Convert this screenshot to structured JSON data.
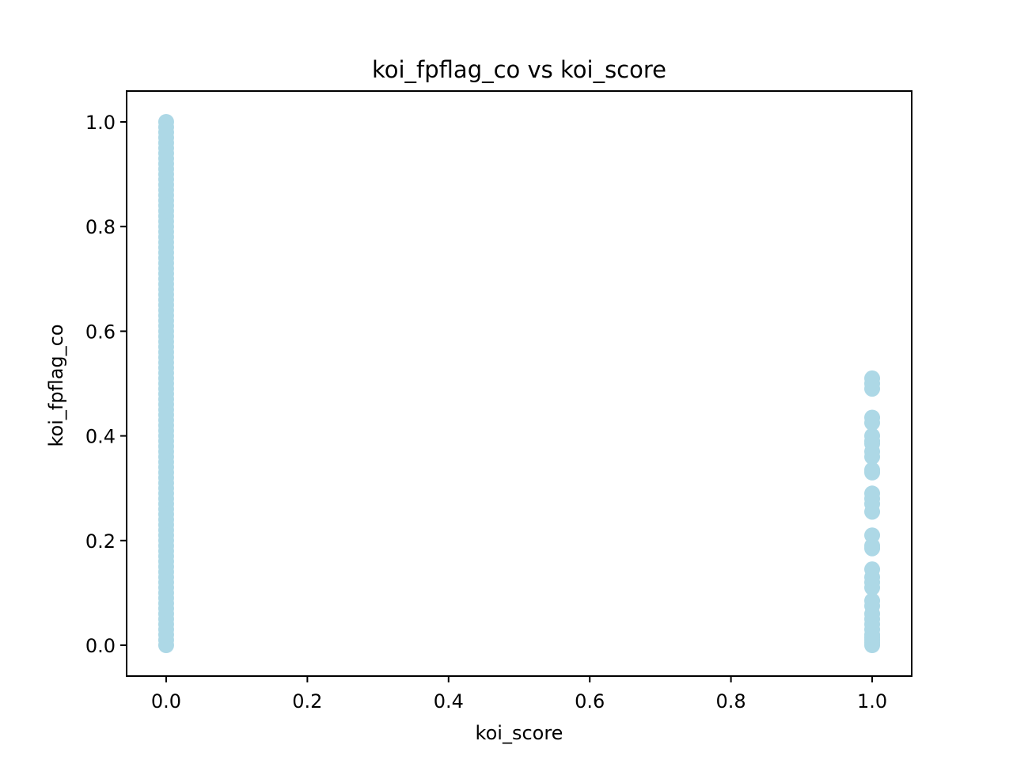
{
  "chart_data": {
    "type": "scatter",
    "title": "koi_fpflag_co vs koi_score",
    "xlabel": "koi_score",
    "ylabel": "koi_fpflag_co",
    "xlim": [
      -0.056,
      1.056
    ],
    "ylim": [
      -0.059,
      1.059
    ],
    "xticks": [
      0.0,
      0.2,
      0.4,
      0.6,
      0.8,
      1.0
    ],
    "yticks": [
      0.0,
      0.2,
      0.4,
      0.6,
      0.8,
      1.0
    ],
    "xtick_labels": [
      "0.0",
      "0.2",
      "0.4",
      "0.6",
      "0.8",
      "1.0"
    ],
    "ytick_labels": [
      "0.0",
      "0.2",
      "0.4",
      "0.6",
      "0.8",
      "1.0"
    ],
    "grid": false,
    "marker_color": "#add8e6",
    "series": [
      {
        "x_value": 0.0,
        "y": [
          0.0,
          0.01,
          0.02,
          0.03,
          0.04,
          0.05,
          0.06,
          0.07,
          0.08,
          0.09,
          0.1,
          0.11,
          0.12,
          0.13,
          0.14,
          0.15,
          0.16,
          0.17,
          0.18,
          0.19,
          0.2,
          0.21,
          0.22,
          0.23,
          0.24,
          0.25,
          0.26,
          0.27,
          0.28,
          0.29,
          0.3,
          0.31,
          0.32,
          0.33,
          0.34,
          0.35,
          0.36,
          0.37,
          0.38,
          0.39,
          0.4,
          0.41,
          0.42,
          0.43,
          0.44,
          0.45,
          0.46,
          0.47,
          0.48,
          0.49,
          0.5,
          0.51,
          0.52,
          0.53,
          0.54,
          0.55,
          0.56,
          0.57,
          0.58,
          0.59,
          0.6,
          0.61,
          0.62,
          0.63,
          0.64,
          0.65,
          0.66,
          0.67,
          0.68,
          0.69,
          0.7,
          0.71,
          0.72,
          0.73,
          0.74,
          0.75,
          0.76,
          0.77,
          0.78,
          0.79,
          0.8,
          0.81,
          0.82,
          0.83,
          0.84,
          0.85,
          0.86,
          0.87,
          0.88,
          0.89,
          0.9,
          0.91,
          0.92,
          0.93,
          0.94,
          0.95,
          0.96,
          0.97,
          0.98,
          0.99,
          1.0
        ]
      },
      {
        "x_value": 1.0,
        "y": [
          0.0,
          0.005,
          0.01,
          0.015,
          0.02,
          0.03,
          0.04,
          0.05,
          0.06,
          0.075,
          0.085,
          0.11,
          0.12,
          0.13,
          0.145,
          0.185,
          0.19,
          0.21,
          0.255,
          0.27,
          0.28,
          0.29,
          0.33,
          0.335,
          0.36,
          0.37,
          0.385,
          0.39,
          0.4,
          0.425,
          0.435,
          0.49,
          0.5,
          0.51
        ]
      }
    ]
  }
}
